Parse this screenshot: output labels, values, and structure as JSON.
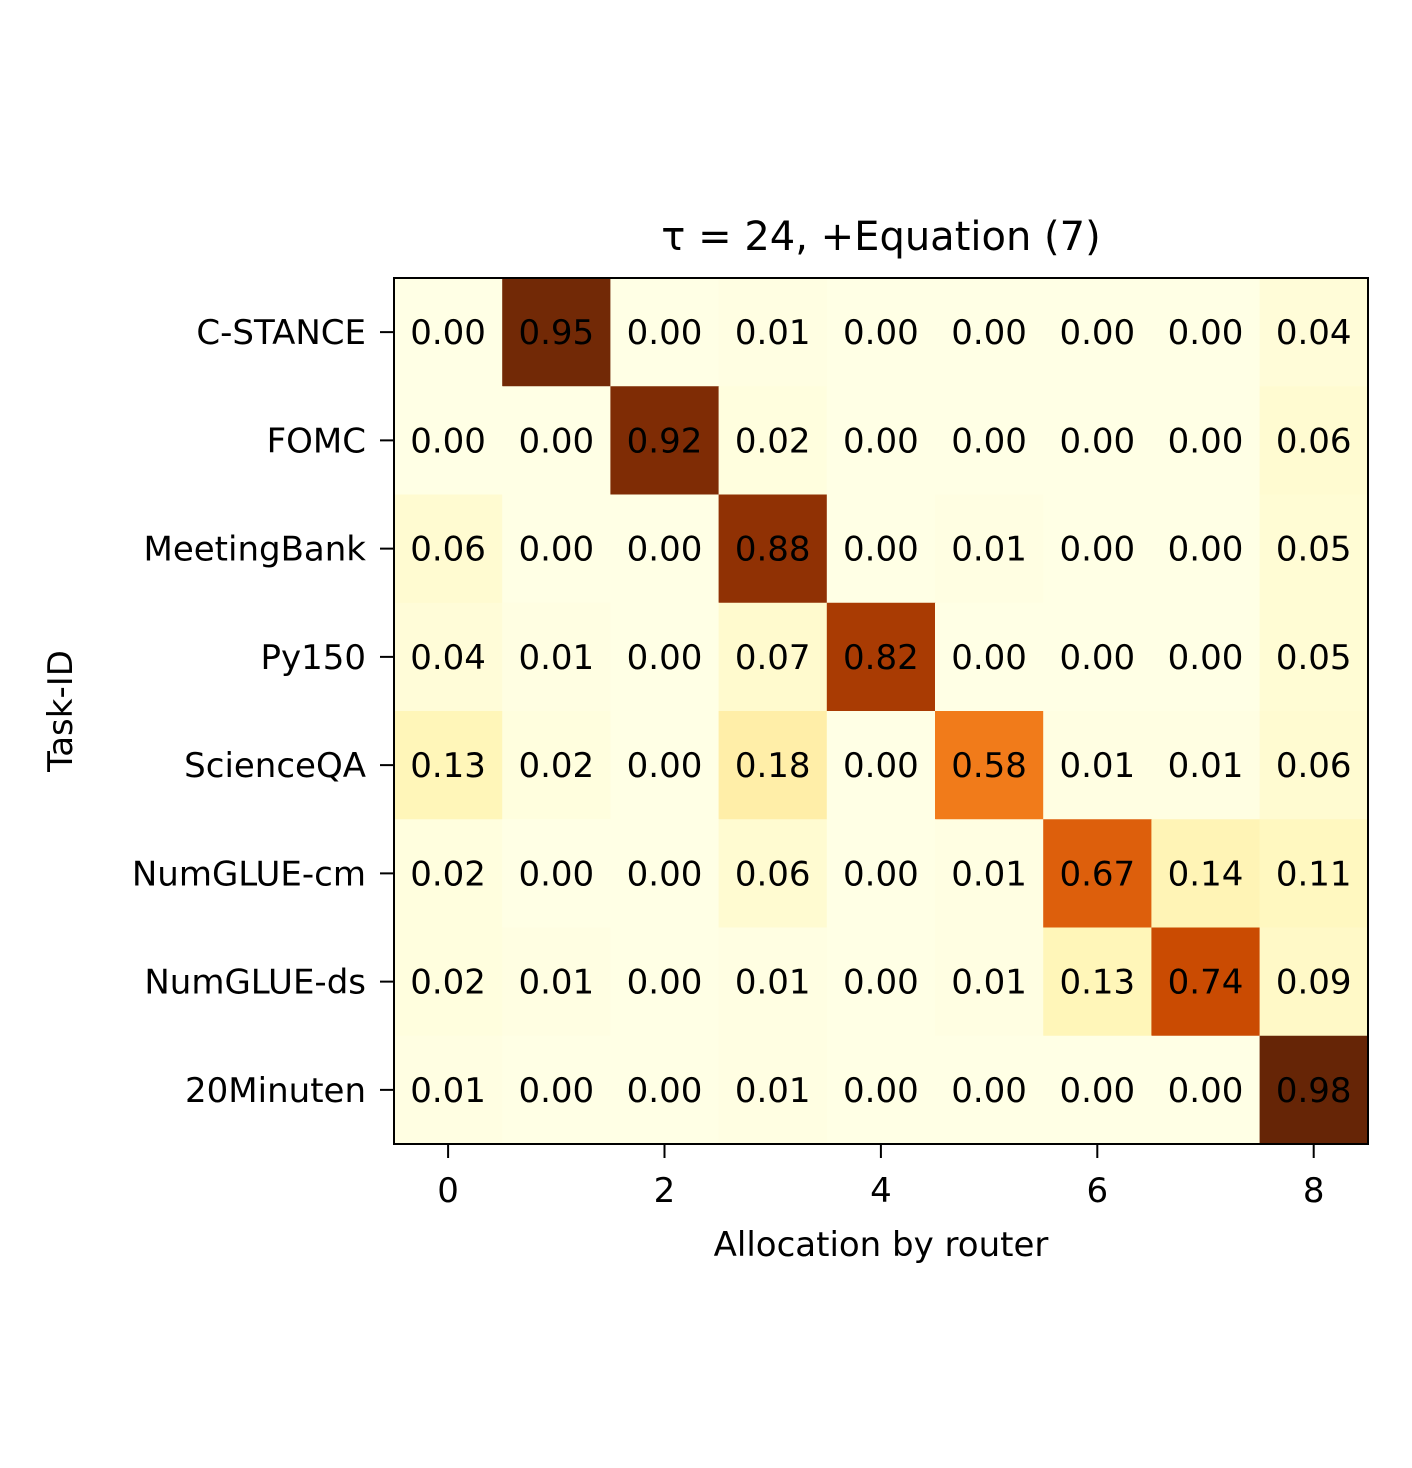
{
  "chart_data": {
    "type": "heatmap",
    "title": "τ = 24, +Equation (7)",
    "xlabel": "Allocation by router",
    "ylabel": "Task-ID",
    "x_categories": [
      0,
      1,
      2,
      3,
      4,
      5,
      6,
      7,
      8
    ],
    "x_tick_labels": [
      "0",
      "2",
      "4",
      "6",
      "8"
    ],
    "x_tick_values": [
      0,
      2,
      4,
      6,
      8
    ],
    "y_categories": [
      "C-STANCE",
      "FOMC",
      "MeetingBank",
      "Py150",
      "ScienceQA",
      "NumGLUE-cm",
      "NumGLUE-ds",
      "20Minuten"
    ],
    "values": [
      [
        0.0,
        0.95,
        0.0,
        0.01,
        0.0,
        0.0,
        0.0,
        0.0,
        0.04
      ],
      [
        0.0,
        0.0,
        0.92,
        0.02,
        0.0,
        0.0,
        0.0,
        0.0,
        0.06
      ],
      [
        0.06,
        0.0,
        0.0,
        0.88,
        0.0,
        0.01,
        0.0,
        0.0,
        0.05
      ],
      [
        0.04,
        0.01,
        0.0,
        0.07,
        0.82,
        0.0,
        0.0,
        0.0,
        0.05
      ],
      [
        0.13,
        0.02,
        0.0,
        0.18,
        0.0,
        0.58,
        0.01,
        0.01,
        0.06
      ],
      [
        0.02,
        0.0,
        0.0,
        0.06,
        0.0,
        0.01,
        0.67,
        0.14,
        0.11
      ],
      [
        0.02,
        0.01,
        0.0,
        0.01,
        0.0,
        0.01,
        0.13,
        0.74,
        0.09
      ],
      [
        0.01,
        0.0,
        0.0,
        0.01,
        0.0,
        0.0,
        0.0,
        0.0,
        0.98
      ]
    ],
    "value_format": "0.00",
    "colormap": "YlOrBr",
    "colormap_stops": [
      "#ffffe5",
      "#fff7bc",
      "#fee391",
      "#fec44f",
      "#fe9929",
      "#ec7014",
      "#cc4c02",
      "#993404",
      "#662506"
    ],
    "value_range": [
      0.0,
      0.98
    ],
    "grid": false,
    "legend": "none"
  }
}
